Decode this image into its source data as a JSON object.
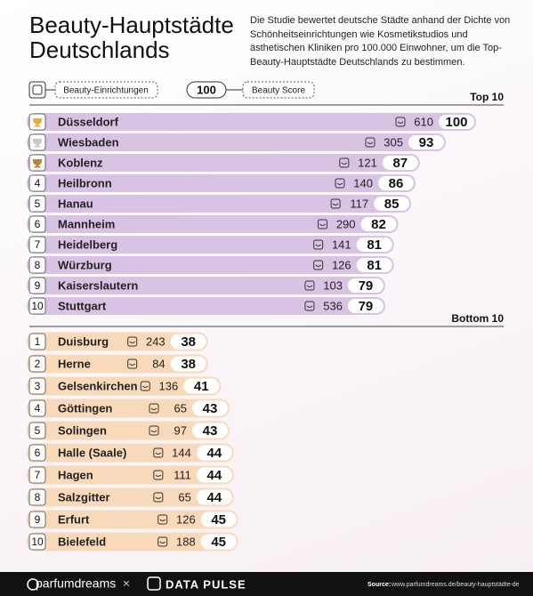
{
  "title": "Beauty-Hauptstädte Deutschlands",
  "description": "Die Studie bewertet deutsche Städte anhand der Dichte von Schönheitseinrichtungen wie Kosmetikstudios und ästhetischen Kliniken pro 100.000 Einwohner, um die Top-Beauty-Hauptstädte Deutschlands zu bestimmen.",
  "legend": {
    "facilities": "Beauty-Einrichtungen",
    "score_example": 100,
    "score": "Beauty Score"
  },
  "chart_data": [
    {
      "type": "bar",
      "title": "Top 10",
      "color": "#d9c3e4",
      "ranks": [
        null,
        null,
        null,
        4,
        5,
        6,
        7,
        8,
        9,
        10
      ],
      "categories": [
        "Düsseldorf",
        "Wiesbaden",
        "Koblenz",
        "Heilbronn",
        "Hanau",
        "Mannheim",
        "Heidelberg",
        "Würzburg",
        "Kaiserslautern",
        "Stuttgart"
      ],
      "facilities": [
        610,
        305,
        121,
        140,
        117,
        290,
        141,
        126,
        103,
        536
      ],
      "values": [
        100,
        93,
        87,
        86,
        85,
        82,
        81,
        81,
        79,
        79
      ],
      "xlim": [
        0,
        100
      ]
    },
    {
      "type": "bar",
      "title": "Bottom 10",
      "color": "#f8dabb",
      "ranks": [
        1,
        2,
        3,
        4,
        5,
        6,
        7,
        8,
        9,
        10
      ],
      "categories": [
        "Duisburg",
        "Herne",
        "Gelsenkirchen",
        "Göttingen",
        "Solingen",
        "Halle (Saale)",
        "Hagen",
        "Salzgitter",
        "Erfurt",
        "Bielefeld"
      ],
      "facilities": [
        243,
        84,
        136,
        65,
        97,
        144,
        111,
        65,
        126,
        188
      ],
      "values": [
        38,
        38,
        41,
        43,
        43,
        44,
        44,
        44,
        45,
        45
      ],
      "xlim": [
        0,
        100
      ]
    }
  ],
  "footer": {
    "brand": "parfumdreams",
    "separator": "×",
    "partner": "DATA PULSE",
    "source_label": "Source:",
    "source_url": "www.parfumdreams.de/beauty-hauptstädte-de"
  }
}
